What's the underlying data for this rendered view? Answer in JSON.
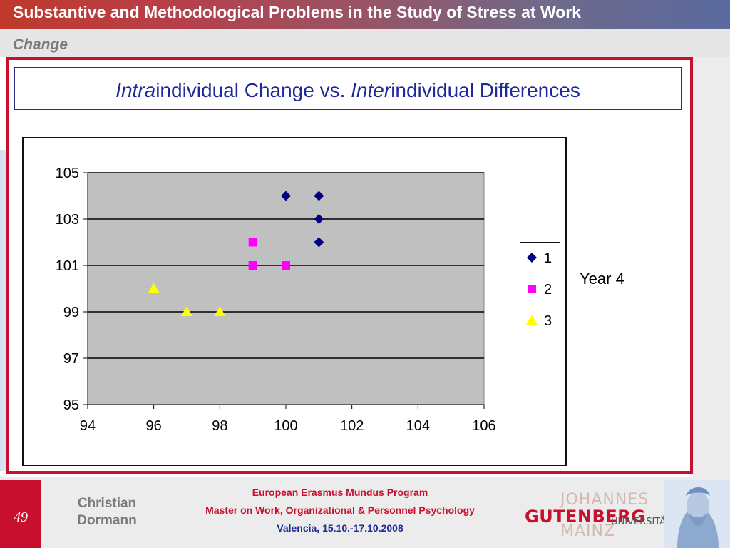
{
  "header": {
    "title": "Substantive and Methodological Problems in the Study of Stress at Work",
    "subtitle": "Change"
  },
  "slide": {
    "title_part1_italic": "Intra",
    "title_part1_rest": "individual Change vs. ",
    "title_part2_italic": "Inter",
    "title_part2_rest": "individual Differences",
    "side_label": "Year 4"
  },
  "chart_data": {
    "type": "scatter",
    "xlim": [
      94,
      106
    ],
    "ylim": [
      95,
      105
    ],
    "x_ticks": [
      94,
      96,
      98,
      100,
      102,
      104,
      106
    ],
    "y_ticks": [
      95,
      97,
      99,
      101,
      103,
      105
    ],
    "grid": "horizontal",
    "legend_position": "right",
    "plot_background": "#c0c0c0",
    "series": [
      {
        "name": "1",
        "marker": "diamond",
        "color": "#000080",
        "points": [
          [
            100,
            104
          ],
          [
            101,
            104
          ],
          [
            101,
            103
          ],
          [
            101,
            102
          ]
        ]
      },
      {
        "name": "2",
        "marker": "square",
        "color": "#ff00ff",
        "points": [
          [
            99,
            102
          ],
          [
            99,
            101
          ],
          [
            100,
            101
          ]
        ]
      },
      {
        "name": "3",
        "marker": "triangle",
        "color": "#ffff00",
        "points": [
          [
            96,
            100
          ],
          [
            97,
            99
          ],
          [
            98,
            99
          ]
        ]
      }
    ]
  },
  "footer": {
    "page_number": "49",
    "author_first": "Christian",
    "author_last": "Dormann",
    "program": "European Erasmus Mundus Program",
    "master": "Master on Work, Organizational & Personnel Psychology",
    "venue": "Valencia, 15.10.-17.10.2008",
    "logo_top": "JOHANNES",
    "logo_main": "GUTENBERG",
    "logo_uni": "UNIVERSITÄT",
    "logo_bottom": "MAINZ"
  },
  "colors": {
    "accent_red": "#c8102e",
    "title_blue": "#1f2a9a"
  }
}
